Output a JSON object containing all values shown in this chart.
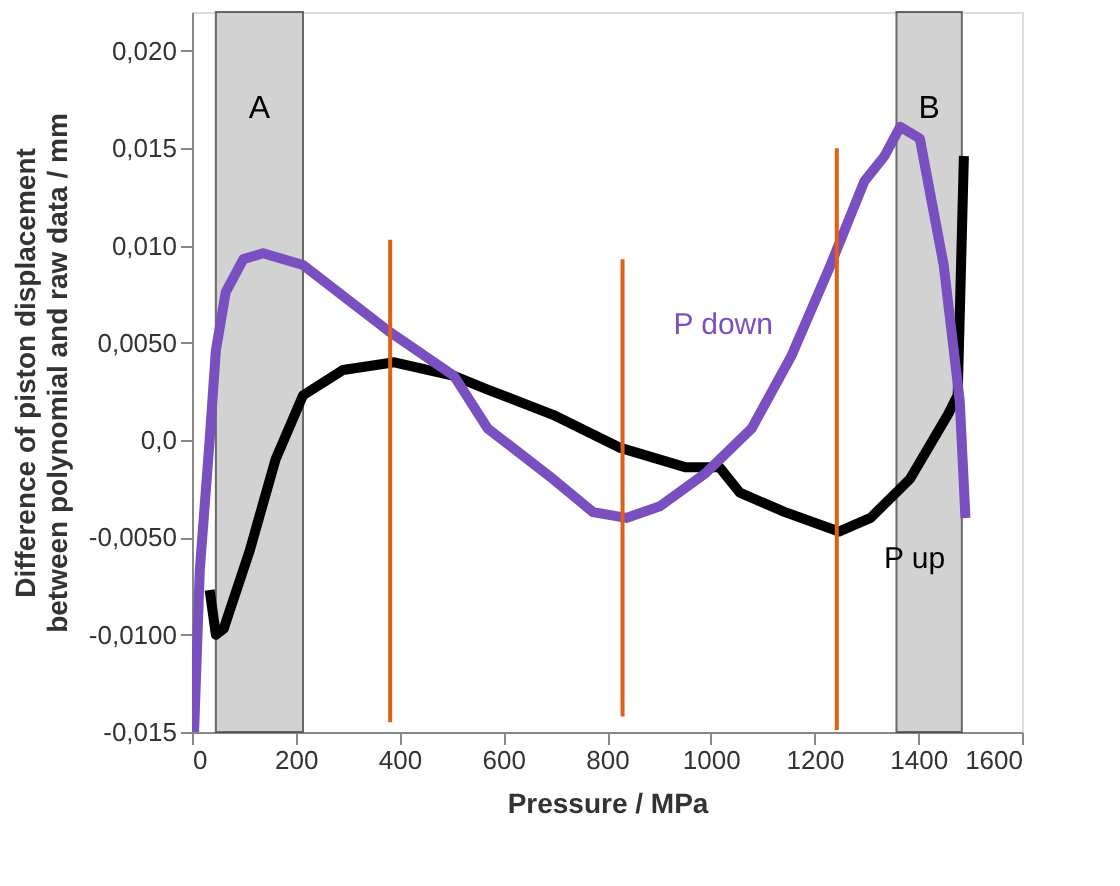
{
  "chart_data": {
    "type": "line",
    "xlabel": "Pressure / MPa",
    "ylabel": "Difference of piston displacement\nbetween polynomial and raw data / mm",
    "xlim": [
      0,
      1600
    ],
    "xticks": [
      0,
      200,
      400,
      600,
      800,
      1000,
      1200,
      1400,
      1600
    ],
    "ylim": [
      -0.015,
      0.022
    ],
    "yticks": [
      {
        "value": -0.015,
        "label": "-0,015"
      },
      {
        "value": -0.01,
        "label": "-0,0100"
      },
      {
        "value": -0.005,
        "label": "-0,0050"
      },
      {
        "value": 0,
        "label": "0,0"
      },
      {
        "value": 0.005,
        "label": "0,0050"
      },
      {
        "value": 0.01,
        "label": "0,010"
      },
      {
        "value": 0.015,
        "label": "0,015"
      },
      {
        "value": 0.02,
        "label": "0,020"
      }
    ],
    "grid": false,
    "line_style": "solid",
    "bands": [
      {
        "axis": "x",
        "from": 46,
        "to": 214,
        "label": "A",
        "color": "#c8c8c8"
      },
      {
        "axis": "x",
        "from": 1358,
        "to": 1484,
        "label": "B",
        "color": "#c8c8c8"
      }
    ],
    "series": [
      {
        "name": "P up",
        "color": "#000000",
        "x": [
          34,
          46,
          61,
          111,
          161,
          214,
          291,
          390,
          505,
          570,
          696,
          826,
          952,
          1017,
          1056,
          1143,
          1247,
          1308,
          1384,
          1457,
          1476,
          1488
        ],
        "values": [
          -0.0077,
          -0.01,
          -0.0097,
          -0.0057,
          -0.001,
          0.0023,
          0.0036,
          0.004,
          0.0033,
          0.0026,
          0.0013,
          -0.0004,
          -0.0014,
          -0.0014,
          -0.0027,
          -0.0037,
          -0.0047,
          -0.004,
          -0.002,
          0.0013,
          0.0023,
          0.0146
        ]
      },
      {
        "name": "P down",
        "color": "#7a4fc0",
        "x": [
          4,
          15,
          34,
          46,
          65,
          99,
          137,
          214,
          379,
          505,
          570,
          696,
          773,
          837,
          902,
          990,
          1079,
          1155,
          1231,
          1296,
          1335,
          1365,
          1403,
          1449,
          1480,
          1491
        ],
        "values": [
          -0.015,
          -0.0067,
          0.0,
          0.0046,
          0.0076,
          0.0093,
          0.0096,
          0.009,
          0.0056,
          0.0033,
          0.0006,
          -0.002,
          -0.0037,
          -0.004,
          -0.0034,
          -0.0017,
          0.0006,
          0.0043,
          0.009,
          0.0133,
          0.0146,
          0.0161,
          0.0155,
          0.009,
          0.002,
          -0.004
        ]
      },
      {
        "color": "#e0601a",
        "x": [
          382,
          382
        ],
        "values": [
          0.0103,
          -0.0145
        ]
      },
      {
        "color": "#e0601a",
        "x": [
          830,
          830
        ],
        "values": [
          0.0093,
          -0.0142
        ]
      },
      {
        "color": "#e0601a",
        "x": [
          1243,
          1243
        ],
        "values": [
          0.015,
          -0.0149
        ]
      }
    ]
  }
}
